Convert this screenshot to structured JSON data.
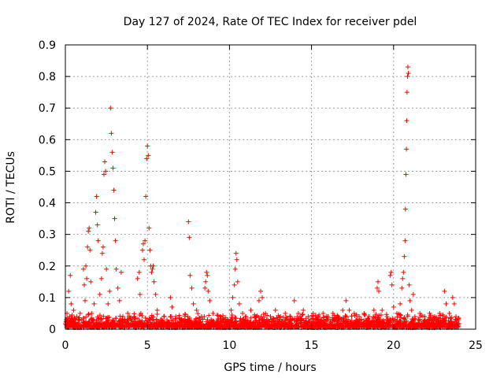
{
  "chart_data": {
    "type": "scatter",
    "title": "Day 127 of 2024, Rate Of TEC Index for receiver pdel",
    "xlabel": "GPS time / hours",
    "ylabel": "ROTI / TECUs",
    "xlim": [
      0,
      25
    ],
    "ylim": [
      0,
      0.9
    ],
    "xticks": [
      "0",
      "5",
      "10",
      "15",
      "20",
      "25"
    ],
    "yticks": [
      "0",
      "0.1",
      "0.2",
      "0.3",
      "0.4",
      "0.5",
      "0.6",
      "0.7",
      "0.8",
      "0.9"
    ],
    "grid": true,
    "marker": "+",
    "color": "#ff0000",
    "series": [
      {
        "points": [
          [
            0.05,
            0.03
          ],
          [
            0.1,
            0.05
          ],
          [
            0.15,
            0.02
          ],
          [
            0.2,
            0.12
          ],
          [
            0.25,
            0.04
          ],
          [
            0.3,
            0.17
          ],
          [
            0.35,
            0.08
          ],
          [
            0.4,
            0.03
          ],
          [
            0.5,
            0.06
          ],
          [
            0.6,
            0.02
          ],
          [
            0.7,
            0.04
          ],
          [
            0.8,
            0.03
          ],
          [
            0.9,
            0.05
          ],
          [
            1.0,
            0.03
          ],
          [
            1.1,
            0.19
          ],
          [
            1.15,
            0.14
          ],
          [
            1.2,
            0.09
          ],
          [
            1.25,
            0.2
          ],
          [
            1.3,
            0.16
          ],
          [
            1.35,
            0.26
          ],
          [
            1.4,
            0.31
          ],
          [
            1.45,
            0.32
          ],
          [
            1.5,
            0.25
          ],
          [
            1.55,
            0.15
          ],
          [
            1.6,
            0.05
          ],
          [
            1.75,
            0.08
          ],
          [
            1.85,
            0.37
          ],
          [
            1.9,
            0.42
          ],
          [
            1.95,
            0.33
          ],
          [
            2.0,
            0.28
          ],
          [
            2.1,
            0.11
          ],
          [
            2.2,
            0.16
          ],
          [
            2.25,
            0.24
          ],
          [
            2.3,
            0.26
          ],
          [
            2.35,
            0.49
          ],
          [
            2.4,
            0.53
          ],
          [
            2.45,
            0.5
          ],
          [
            2.5,
            0.19
          ],
          [
            2.6,
            0.08
          ],
          [
            2.7,
            0.12
          ],
          [
            2.75,
            0.7
          ],
          [
            2.8,
            0.62
          ],
          [
            2.85,
            0.56
          ],
          [
            2.9,
            0.51
          ],
          [
            2.95,
            0.44
          ],
          [
            3.0,
            0.35
          ],
          [
            3.05,
            0.28
          ],
          [
            3.1,
            0.19
          ],
          [
            3.2,
            0.13
          ],
          [
            3.3,
            0.09
          ],
          [
            3.4,
            0.18
          ],
          [
            3.5,
            0.04
          ],
          [
            3.6,
            0.03
          ],
          [
            3.8,
            0.05
          ],
          [
            4.0,
            0.03
          ],
          [
            4.2,
            0.04
          ],
          [
            4.4,
            0.16
          ],
          [
            4.5,
            0.18
          ],
          [
            4.55,
            0.11
          ],
          [
            4.6,
            0.05
          ],
          [
            4.7,
            0.25
          ],
          [
            4.75,
            0.27
          ],
          [
            4.8,
            0.22
          ],
          [
            4.85,
            0.28
          ],
          [
            4.9,
            0.42
          ],
          [
            4.95,
            0.54
          ],
          [
            5.0,
            0.58
          ],
          [
            5.05,
            0.55
          ],
          [
            5.1,
            0.32
          ],
          [
            5.15,
            0.25
          ],
          [
            5.2,
            0.2
          ],
          [
            5.25,
            0.18
          ],
          [
            5.3,
            0.19
          ],
          [
            5.35,
            0.2
          ],
          [
            5.4,
            0.15
          ],
          [
            5.5,
            0.11
          ],
          [
            5.6,
            0.06
          ],
          [
            5.8,
            0.03
          ],
          [
            6.0,
            0.04
          ],
          [
            6.2,
            0.02
          ],
          [
            6.4,
            0.1
          ],
          [
            6.5,
            0.07
          ],
          [
            6.7,
            0.03
          ],
          [
            7.0,
            0.02
          ],
          [
            7.3,
            0.03
          ],
          [
            7.5,
            0.34
          ],
          [
            7.55,
            0.29
          ],
          [
            7.6,
            0.17
          ],
          [
            7.7,
            0.13
          ],
          [
            7.8,
            0.08
          ],
          [
            8.0,
            0.06
          ],
          [
            8.3,
            0.04
          ],
          [
            8.5,
            0.13
          ],
          [
            8.55,
            0.15
          ],
          [
            8.6,
            0.18
          ],
          [
            8.65,
            0.17
          ],
          [
            8.7,
            0.12
          ],
          [
            8.8,
            0.09
          ],
          [
            9.0,
            0.05
          ],
          [
            9.3,
            0.03
          ],
          [
            9.6,
            0.02
          ],
          [
            9.9,
            0.03
          ],
          [
            10.1,
            0.06
          ],
          [
            10.2,
            0.1
          ],
          [
            10.3,
            0.14
          ],
          [
            10.35,
            0.19
          ],
          [
            10.4,
            0.24
          ],
          [
            10.45,
            0.22
          ],
          [
            10.5,
            0.15
          ],
          [
            10.6,
            0.08
          ],
          [
            10.8,
            0.05
          ],
          [
            11.0,
            0.04
          ],
          [
            11.3,
            0.06
          ],
          [
            11.6,
            0.04
          ],
          [
            11.8,
            0.09
          ],
          [
            11.9,
            0.12
          ],
          [
            12.0,
            0.1
          ],
          [
            12.2,
            0.05
          ],
          [
            12.5,
            0.04
          ],
          [
            12.8,
            0.06
          ],
          [
            13.1,
            0.04
          ],
          [
            13.4,
            0.05
          ],
          [
            13.7,
            0.04
          ],
          [
            13.95,
            0.09
          ],
          [
            14.2,
            0.05
          ],
          [
            14.5,
            0.06
          ],
          [
            14.8,
            0.04
          ],
          [
            15.1,
            0.05
          ],
          [
            15.4,
            0.04
          ],
          [
            15.7,
            0.05
          ],
          [
            16.0,
            0.04
          ],
          [
            16.3,
            0.05
          ],
          [
            16.6,
            0.04
          ],
          [
            16.9,
            0.06
          ],
          [
            17.1,
            0.09
          ],
          [
            17.3,
            0.06
          ],
          [
            17.6,
            0.05
          ],
          [
            17.9,
            0.04
          ],
          [
            18.2,
            0.05
          ],
          [
            18.5,
            0.04
          ],
          [
            18.8,
            0.06
          ],
          [
            19.0,
            0.13
          ],
          [
            19.05,
            0.15
          ],
          [
            19.1,
            0.12
          ],
          [
            19.3,
            0.06
          ],
          [
            19.6,
            0.04
          ],
          [
            19.8,
            0.17
          ],
          [
            19.85,
            0.18
          ],
          [
            19.9,
            0.14
          ],
          [
            20.0,
            0.07
          ],
          [
            20.2,
            0.05
          ],
          [
            20.4,
            0.08
          ],
          [
            20.5,
            0.13
          ],
          [
            20.55,
            0.16
          ],
          [
            20.6,
            0.18
          ],
          [
            20.65,
            0.23
          ],
          [
            20.7,
            0.28
          ],
          [
            20.72,
            0.38
          ],
          [
            20.75,
            0.49
          ],
          [
            20.78,
            0.57
          ],
          [
            20.8,
            0.66
          ],
          [
            20.82,
            0.75
          ],
          [
            20.85,
            0.8
          ],
          [
            20.87,
            0.83
          ],
          [
            20.9,
            0.81
          ],
          [
            20.95,
            0.14
          ],
          [
            21.0,
            0.09
          ],
          [
            21.1,
            0.06
          ],
          [
            21.2,
            0.11
          ],
          [
            21.3,
            0.04
          ],
          [
            21.6,
            0.05
          ],
          [
            21.9,
            0.04
          ],
          [
            22.2,
            0.05
          ],
          [
            22.5,
            0.04
          ],
          [
            22.8,
            0.05
          ],
          [
            23.1,
            0.12
          ],
          [
            23.2,
            0.08
          ],
          [
            23.4,
            0.05
          ],
          [
            23.6,
            0.1
          ],
          [
            23.7,
            0.08
          ],
          [
            23.8,
            0.04
          ],
          [
            23.95,
            0.03
          ]
        ]
      }
    ]
  }
}
